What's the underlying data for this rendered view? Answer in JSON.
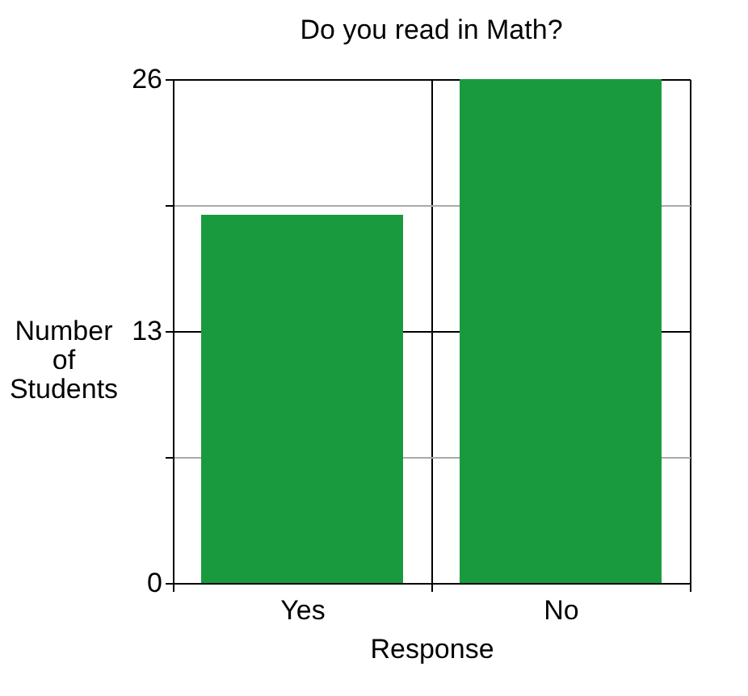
{
  "chart_data": {
    "type": "bar",
    "title": "Do you read in Math?",
    "xlabel": "Response",
    "ylabel": "Number of Students",
    "categories": [
      "Yes",
      "No"
    ],
    "values": [
      19,
      26
    ],
    "color": "#1a9a3e",
    "ylim": [
      0,
      26
    ],
    "yticks": [
      0,
      {
        "value": 6.5,
        "label": null
      },
      13,
      {
        "value": 19.5,
        "label": null
      },
      26
    ],
    "grid": true
  }
}
